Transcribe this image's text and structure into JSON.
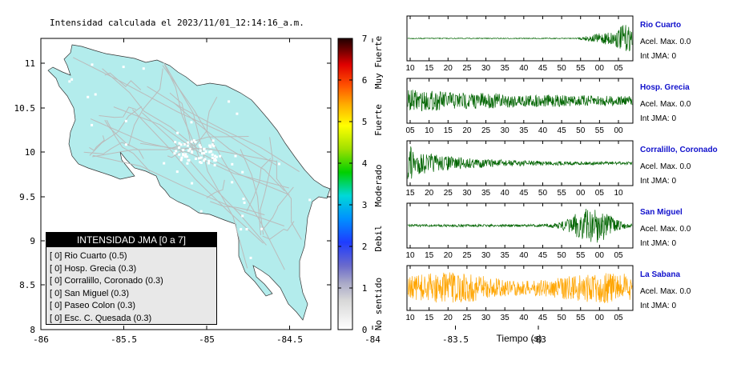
{
  "map": {
    "title": "Intensidad calculada el 2023/11/01_12:14:16_a.m.",
    "x_ticks": [
      "-86",
      "-85.5",
      "-85",
      "-84.5",
      "-84",
      "-83.5",
      "-83"
    ],
    "y_ticks": [
      "11",
      "10.5",
      "10",
      "9.5",
      "9",
      "8.5",
      "8"
    ],
    "land_color": "#b3ecec",
    "road_color": "#bbbbbb"
  },
  "colorbar": {
    "ticks": [
      "0",
      "1",
      "2",
      "3",
      "4",
      "5",
      "6",
      "7"
    ],
    "labels": [
      "No sentido",
      "Debil",
      "Moderado",
      "Fuerte",
      "Muy Fuerte"
    ]
  },
  "legend": {
    "header": "INTENSIDAD JMA [0 a 7]",
    "items": [
      {
        "code": "[ 0]",
        "text": "Rio Cuarto (0.5)"
      },
      {
        "code": "[ 0]",
        "text": "Hosp. Grecia (0.3)"
      },
      {
        "code": "[ 0]",
        "text": "Corralillo, Coronado (0.3)"
      },
      {
        "code": "[ 0]",
        "text": "San Miguel (0.3)"
      },
      {
        "code": "[ 0]",
        "text": "Paseo Colon (0.3)"
      },
      {
        "code": "[ 0]",
        "text": "Esc. C. Quesada (0.3)"
      }
    ]
  },
  "chart_data": {
    "type": "line",
    "xlabel": "Tiempo (s)",
    "series": [
      {
        "name": "Rio Cuarto",
        "accel": "Acel. Max. 0.0",
        "int": "Int JMA: 0",
        "color": "#006400",
        "ticks": [
          "10",
          "15",
          "20",
          "25",
          "30",
          "35",
          "40",
          "45",
          "50",
          "55",
          "00",
          "05"
        ],
        "envelope": "late-burst"
      },
      {
        "name": "Hosp. Grecia",
        "accel": "Acel. Max. 0.0",
        "int": "Int JMA: 0",
        "color": "#006400",
        "ticks": [
          "05",
          "10",
          "15",
          "20",
          "25",
          "30",
          "35",
          "40",
          "45",
          "50",
          "55",
          "00"
        ],
        "envelope": "early-decay"
      },
      {
        "name": "Corralillo, Coronado",
        "accel": "Acel. Max. 0.0",
        "int": "Int JMA: 0",
        "color": "#006400",
        "ticks": [
          "15",
          "20",
          "25",
          "30",
          "35",
          "40",
          "45",
          "50",
          "55",
          "00",
          "05",
          "10"
        ],
        "envelope": "spike-decay"
      },
      {
        "name": "San Miguel",
        "accel": "Acel. Max. 0.0",
        "int": "Int JMA: 0",
        "color": "#006400",
        "ticks": [
          "10",
          "15",
          "20",
          "25",
          "30",
          "35",
          "40",
          "45",
          "50",
          "55",
          "00",
          "05"
        ],
        "envelope": "late-swell"
      },
      {
        "name": "La Sabana",
        "accel": "Acel. Max. 0.0",
        "int": "Int JMA: 0",
        "color": "#ffa500",
        "ticks": [
          "10",
          "15",
          "20",
          "25",
          "30",
          "35",
          "40",
          "45",
          "50",
          "55",
          "00",
          "05"
        ],
        "envelope": "constant"
      }
    ]
  }
}
